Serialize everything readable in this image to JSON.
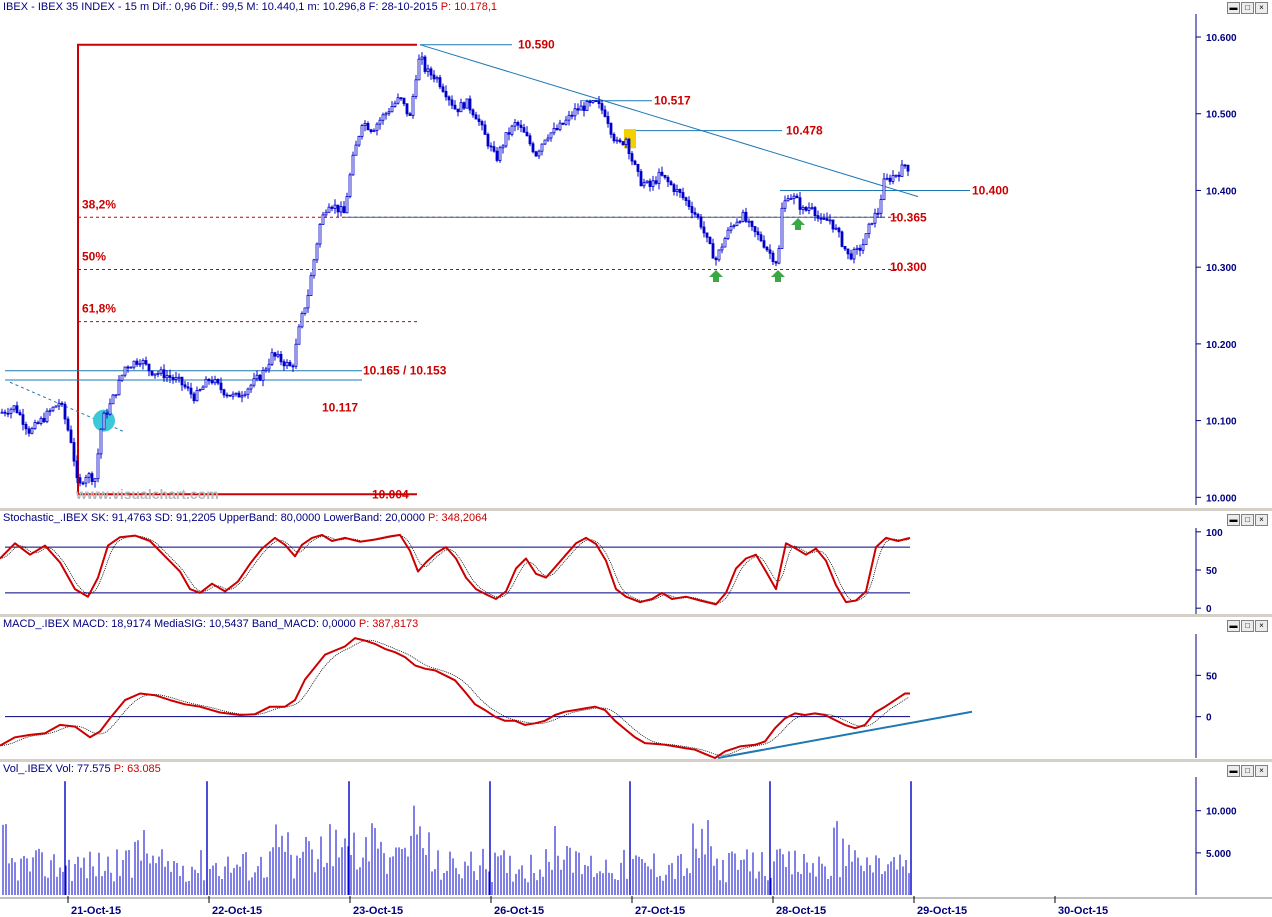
{
  "header_main": "IBEX - IBEX 35 INDEX - 15 m  Dif.: 0,96  Dif.: 99,5  M: 10.440,1  m: 10.296,8  F: 28-10-2015",
  "header_main_p": "P: 10.178,1",
  "header_stoch": "Stochastic_.IBEX  SK: 91,4763  SD: 91,2205  UpperBand: 80,0000  LowerBand: 20,0000",
  "header_stoch_p": "P: 348,2064",
  "header_macd": "MACD_.IBEX  MACD: 18,9174  MediaSIG: 10,5437  Band_MACD: 0,0000",
  "header_macd_p": "P: 387,8173",
  "header_vol": "Vol_.IBEX  Vol: 77.575",
  "header_vol_p": "P: 63.085",
  "watermark": "www.visualchart.com",
  "window_buttons": [
    "▬",
    "□",
    "×"
  ],
  "colors": {
    "axis_text": "#000080",
    "candle": "#0000cc",
    "level_red": "#cc0000",
    "trend_blue": "#1e78b4",
    "volume": "#0000cc",
    "arrow_green": "#3aa845",
    "highlight_yellow": "#f5d000",
    "highlight_cyan": "#3cc8d8"
  },
  "chart_data": [
    {
      "type": "candlestick",
      "name": "IBEX 35 15m",
      "ylim": [
        9990,
        10630
      ],
      "yticks": [
        10000,
        10100,
        10200,
        10300,
        10400,
        10500,
        10600
      ],
      "ytick_labels": [
        "10.000",
        "10.100",
        "10.200",
        "10.300",
        "10.400",
        "10.500",
        "10.600"
      ],
      "xlim": [
        0,
        1186
      ],
      "x_dates": [
        "21-Oct-15",
        "22-Oct-15",
        "23-Oct-15",
        "26-Oct-15",
        "27-Oct-15",
        "28-Oct-15",
        "29-Oct-15",
        "30-Oct-15"
      ],
      "x_date_pos": [
        68,
        209,
        350,
        491,
        632,
        773,
        914,
        1055
      ],
      "path": [
        [
          0,
          10110
        ],
        [
          15,
          10118
        ],
        [
          30,
          10085
        ],
        [
          45,
          10105
        ],
        [
          60,
          10125
        ],
        [
          72,
          10070
        ],
        [
          78,
          10010
        ],
        [
          85,
          10030
        ],
        [
          95,
          10025
        ],
        [
          102,
          10100
        ],
        [
          110,
          10120
        ],
        [
          118,
          10145
        ],
        [
          125,
          10170
        ],
        [
          140,
          10180
        ],
        [
          150,
          10165
        ],
        [
          165,
          10160
        ],
        [
          180,
          10150
        ],
        [
          195,
          10130
        ],
        [
          210,
          10155
        ],
        [
          222,
          10140
        ],
        [
          235,
          10130
        ],
        [
          250,
          10145
        ],
        [
          262,
          10160
        ],
        [
          272,
          10185
        ],
        [
          282,
          10178
        ],
        [
          292,
          10168
        ],
        [
          300,
          10225
        ],
        [
          308,
          10265
        ],
        [
          314,
          10310
        ],
        [
          320,
          10355
        ],
        [
          328,
          10385
        ],
        [
          336,
          10378
        ],
        [
          344,
          10370
        ],
        [
          352,
          10435
        ],
        [
          362,
          10490
        ],
        [
          372,
          10480
        ],
        [
          382,
          10495
        ],
        [
          392,
          10510
        ],
        [
          400,
          10520
        ],
        [
          410,
          10495
        ],
        [
          416,
          10550
        ],
        [
          420,
          10575
        ],
        [
          426,
          10555
        ],
        [
          436,
          10548
        ],
        [
          446,
          10528
        ],
        [
          456,
          10505
        ],
        [
          466,
          10515
        ],
        [
          476,
          10498
        ],
        [
          486,
          10468
        ],
        [
          496,
          10440
        ],
        [
          506,
          10470
        ],
        [
          516,
          10488
        ],
        [
          526,
          10470
        ],
        [
          536,
          10448
        ],
        [
          546,
          10472
        ],
        [
          556,
          10478
        ],
        [
          566,
          10490
        ],
        [
          576,
          10505
        ],
        [
          586,
          10510
        ],
        [
          596,
          10513
        ],
        [
          606,
          10500
        ],
        [
          612,
          10475
        ],
        [
          618,
          10458
        ],
        [
          626,
          10468
        ],
        [
          632,
          10440
        ],
        [
          640,
          10412
        ],
        [
          650,
          10405
        ],
        [
          660,
          10420
        ],
        [
          670,
          10408
        ],
        [
          680,
          10395
        ],
        [
          690,
          10380
        ],
        [
          700,
          10360
        ],
        [
          708,
          10330
        ],
        [
          716,
          10310
        ],
        [
          724,
          10335
        ],
        [
          732,
          10355
        ],
        [
          742,
          10368
        ],
        [
          752,
          10348
        ],
        [
          762,
          10335
        ],
        [
          770,
          10318
        ],
        [
          778,
          10305
        ],
        [
          782,
          10375
        ],
        [
          788,
          10395
        ],
        [
          796,
          10388
        ],
        [
          804,
          10372
        ],
        [
          812,
          10382
        ],
        [
          820,
          10358
        ],
        [
          830,
          10362
        ],
        [
          840,
          10338
        ],
        [
          848,
          10315
        ],
        [
          856,
          10318
        ],
        [
          864,
          10332
        ],
        [
          872,
          10362
        ],
        [
          878,
          10372
        ],
        [
          884,
          10410
        ],
        [
          892,
          10418
        ],
        [
          900,
          10425
        ],
        [
          906,
          10435
        ],
        [
          910,
          10425
        ]
      ],
      "levels": [
        {
          "label": "10.590",
          "value": 10590
        },
        {
          "label": "10.517",
          "value": 10517
        },
        {
          "label": "10.478",
          "value": 10478
        },
        {
          "label": "10.400",
          "value": 10400
        },
        {
          "label": "10.365",
          "value": 10365
        },
        {
          "label": "10.300",
          "value": 10300
        },
        {
          "label": "10.165 / 10.153",
          "value": 10165
        },
        {
          "label": "10.117",
          "value": 10117
        },
        {
          "label": "10.004",
          "value": 10004
        }
      ],
      "fib_labels": [
        "38,2%",
        "50%",
        "61,8%"
      ],
      "fib_values": [
        10365,
        10297,
        10229
      ]
    },
    {
      "type": "line",
      "name": "Stochastic",
      "ylim": [
        -5,
        105
      ],
      "yticks": [
        0,
        50,
        100
      ],
      "ytick_labels": [
        "0",
        "50",
        "100"
      ],
      "bands": [
        80,
        20
      ],
      "sk": [
        [
          0,
          65
        ],
        [
          15,
          85
        ],
        [
          30,
          70
        ],
        [
          45,
          82
        ],
        [
          60,
          60
        ],
        [
          75,
          25
        ],
        [
          88,
          15
        ],
        [
          98,
          40
        ],
        [
          108,
          82
        ],
        [
          120,
          93
        ],
        [
          135,
          95
        ],
        [
          150,
          88
        ],
        [
          165,
          68
        ],
        [
          180,
          48
        ],
        [
          190,
          25
        ],
        [
          200,
          20
        ],
        [
          212,
          32
        ],
        [
          225,
          22
        ],
        [
          238,
          35
        ],
        [
          250,
          58
        ],
        [
          262,
          78
        ],
        [
          275,
          92
        ],
        [
          285,
          83
        ],
        [
          295,
          68
        ],
        [
          302,
          83
        ],
        [
          312,
          92
        ],
        [
          322,
          96
        ],
        [
          332,
          88
        ],
        [
          345,
          92
        ],
        [
          360,
          87
        ],
        [
          375,
          90
        ],
        [
          390,
          94
        ],
        [
          400,
          96
        ],
        [
          410,
          75
        ],
        [
          418,
          48
        ],
        [
          426,
          60
        ],
        [
          436,
          72
        ],
        [
          446,
          80
        ],
        [
          456,
          65
        ],
        [
          466,
          40
        ],
        [
          476,
          25
        ],
        [
          486,
          18
        ],
        [
          496,
          12
        ],
        [
          506,
          22
        ],
        [
          516,
          52
        ],
        [
          526,
          65
        ],
        [
          536,
          45
        ],
        [
          546,
          40
        ],
        [
          556,
          55
        ],
        [
          566,
          70
        ],
        [
          576,
          85
        ],
        [
          586,
          92
        ],
        [
          596,
          84
        ],
        [
          606,
          62
        ],
        [
          616,
          25
        ],
        [
          626,
          15
        ],
        [
          640,
          8
        ],
        [
          652,
          12
        ],
        [
          662,
          20
        ],
        [
          672,
          12
        ],
        [
          686,
          15
        ],
        [
          700,
          10
        ],
        [
          716,
          5
        ],
        [
          726,
          20
        ],
        [
          736,
          52
        ],
        [
          746,
          65
        ],
        [
          756,
          70
        ],
        [
          766,
          48
        ],
        [
          776,
          25
        ],
        [
          786,
          85
        ],
        [
          796,
          78
        ],
        [
          806,
          70
        ],
        [
          816,
          78
        ],
        [
          826,
          62
        ],
        [
          836,
          30
        ],
        [
          846,
          8
        ],
        [
          856,
          10
        ],
        [
          866,
          22
        ],
        [
          876,
          80
        ],
        [
          886,
          92
        ],
        [
          898,
          88
        ],
        [
          910,
          92
        ]
      ]
    },
    {
      "type": "line",
      "name": "MACD",
      "ylim": [
        -50,
        100
      ],
      "yticks": [
        0,
        50
      ],
      "ytick_labels": [
        "0",
        "50"
      ],
      "macd": [
        [
          0,
          -35
        ],
        [
          15,
          -25
        ],
        [
          30,
          -22
        ],
        [
          45,
          -20
        ],
        [
          60,
          -10
        ],
        [
          75,
          -12
        ],
        [
          90,
          -25
        ],
        [
          100,
          -18
        ],
        [
          110,
          -2
        ],
        [
          125,
          20
        ],
        [
          140,
          28
        ],
        [
          155,
          26
        ],
        [
          170,
          20
        ],
        [
          185,
          15
        ],
        [
          200,
          12
        ],
        [
          220,
          5
        ],
        [
          240,
          2
        ],
        [
          255,
          3
        ],
        [
          270,
          12
        ],
        [
          285,
          12
        ],
        [
          295,
          20
        ],
        [
          305,
          45
        ],
        [
          315,
          60
        ],
        [
          325,
          75
        ],
        [
          335,
          80
        ],
        [
          345,
          85
        ],
        [
          355,
          95
        ],
        [
          365,
          92
        ],
        [
          375,
          88
        ],
        [
          385,
          82
        ],
        [
          395,
          78
        ],
        [
          405,
          72
        ],
        [
          415,
          62
        ],
        [
          425,
          58
        ],
        [
          435,
          56
        ],
        [
          445,
          50
        ],
        [
          455,
          44
        ],
        [
          465,
          30
        ],
        [
          475,
          15
        ],
        [
          485,
          8
        ],
        [
          495,
          0
        ],
        [
          505,
          -5
        ],
        [
          515,
          -5
        ],
        [
          525,
          -10
        ],
        [
          535,
          -8
        ],
        [
          545,
          -5
        ],
        [
          555,
          2
        ],
        [
          565,
          6
        ],
        [
          575,
          8
        ],
        [
          585,
          10
        ],
        [
          595,
          12
        ],
        [
          605,
          8
        ],
        [
          615,
          -5
        ],
        [
          625,
          -15
        ],
        [
          635,
          -25
        ],
        [
          645,
          -32
        ],
        [
          655,
          -33
        ],
        [
          665,
          -34
        ],
        [
          675,
          -36
        ],
        [
          685,
          -38
        ],
        [
          695,
          -40
        ],
        [
          705,
          -45
        ],
        [
          715,
          -50
        ],
        [
          725,
          -42
        ],
        [
          740,
          -36
        ],
        [
          755,
          -34
        ],
        [
          765,
          -30
        ],
        [
          775,
          -14
        ],
        [
          785,
          -2
        ],
        [
          795,
          4
        ],
        [
          805,
          2
        ],
        [
          815,
          4
        ],
        [
          825,
          2
        ],
        [
          835,
          -4
        ],
        [
          845,
          -10
        ],
        [
          855,
          -14
        ],
        [
          865,
          -10
        ],
        [
          875,
          5
        ],
        [
          885,
          12
        ],
        [
          895,
          20
        ],
        [
          905,
          28
        ],
        [
          910,
          28
        ]
      ]
    },
    {
      "type": "bar",
      "name": "Volume",
      "ylim": [
        0,
        14000
      ],
      "yticks": [
        5000,
        10000
      ],
      "ytick_labels": [
        "5.000",
        "10.000"
      ],
      "spike_x": [
        65,
        207,
        349,
        490,
        630,
        770,
        911
      ],
      "spike_values": [
        13500,
        13500,
        13500,
        13500,
        13500,
        13500,
        13500
      ]
    }
  ]
}
